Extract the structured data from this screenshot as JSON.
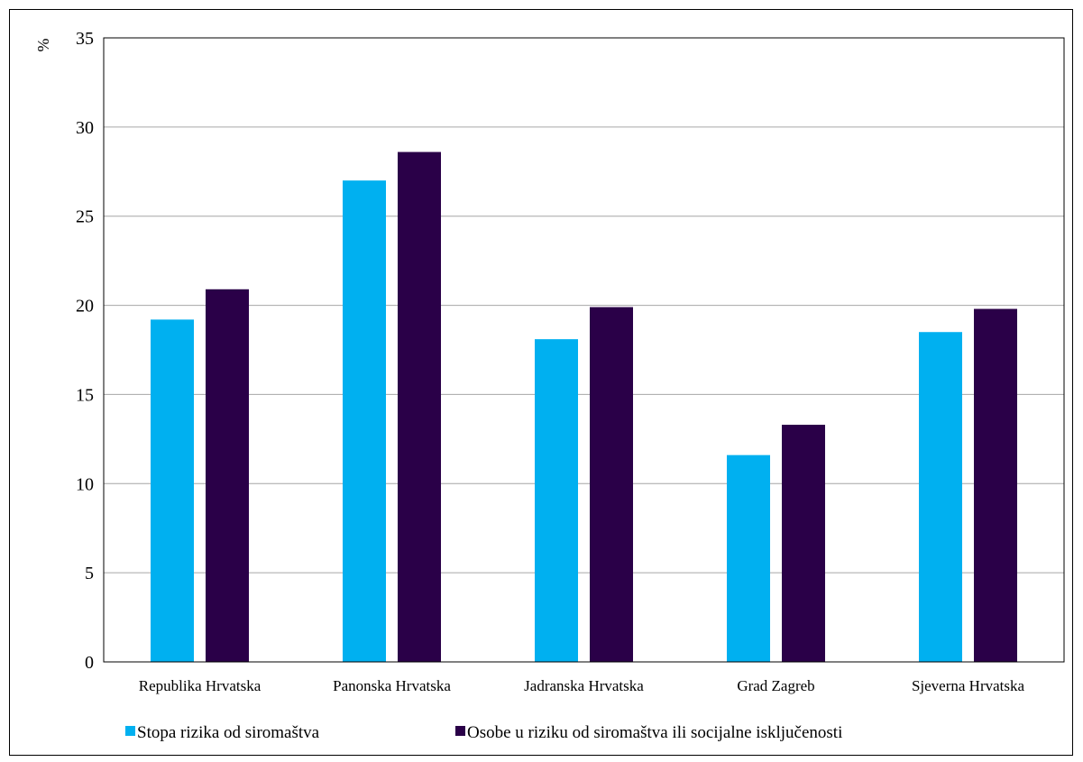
{
  "chart_data": {
    "type": "bar",
    "unit_label": "%",
    "categories": [
      "Republika Hrvatska",
      "Panonska Hrvatska",
      "Jadranska Hrvatska",
      "Grad Zagreb",
      "Sjeverna Hrvatska"
    ],
    "series": [
      {
        "name": "Stopa rizika od siromaštva",
        "color": "#00b0f0",
        "values": [
          19.2,
          27.0,
          18.1,
          11.6,
          18.5
        ]
      },
      {
        "name": "Osobe u riziku od siromaštva ili socijalne isključenosti",
        "color": "#2a0048",
        "values": [
          20.9,
          28.6,
          19.9,
          13.3,
          19.8
        ]
      }
    ],
    "ylim": [
      0,
      35
    ],
    "yticks": [
      0,
      5,
      10,
      15,
      20,
      25,
      30,
      35
    ],
    "grid": true,
    "legend_position": "bottom"
  }
}
